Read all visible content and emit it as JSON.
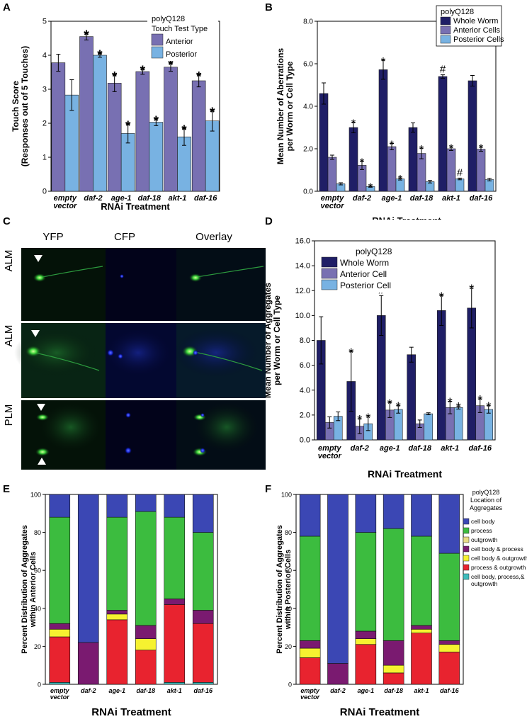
{
  "panel_labels": {
    "a": "A",
    "b": "B",
    "c": "C",
    "d": "D",
    "e": "E",
    "f": "F"
  },
  "colors": {
    "anterior": "#7870b2",
    "posterior": "#78b2e2",
    "whole": "#1f1e66",
    "cellbody": "#3b47b4",
    "process": "#3cbc3f",
    "outgrowth": "#e8db84",
    "cb_process": "#7a1a70",
    "cb_outgrowth": "#f6f230",
    "proc_outgrowth": "#e8232f",
    "all3": "#3fbcbc"
  },
  "micro": {
    "columns": [
      "YFP",
      "CFP",
      "Overlay"
    ],
    "rows": [
      "ALM",
      "ALM",
      "PLM"
    ]
  },
  "chart_data": [
    {
      "id": "A",
      "type": "bar",
      "categories": [
        "empty vector",
        "daf-2",
        "age-1",
        "daf-18",
        "akt-1",
        "daf-16"
      ],
      "cat_lines": [
        [
          "empty",
          "vector"
        ],
        [
          "daf-2"
        ],
        [
          "age-1"
        ],
        [
          "daf-18"
        ],
        [
          "akt-1"
        ],
        [
          "daf-16"
        ]
      ],
      "legend_title": [
        "polyQ128",
        "Touch Test Type"
      ],
      "series": [
        {
          "name": "Anterior",
          "color": "#7870b2",
          "values": [
            3.78,
            4.55,
            3.18,
            3.52,
            3.65,
            3.25
          ],
          "err": [
            0.25,
            0.1,
            0.25,
            0.08,
            0.12,
            0.18
          ],
          "marks": [
            "",
            "*",
            "*",
            "*",
            "*",
            "*"
          ]
        },
        {
          "name": "Posterior",
          "color": "#78b2e2",
          "values": [
            2.83,
            4.0,
            1.7,
            2.03,
            1.6,
            2.07
          ],
          "err": [
            0.45,
            0.06,
            0.28,
            0.1,
            0.25,
            0.3
          ],
          "marks": [
            "",
            "*",
            "*",
            "*",
            "*",
            "*"
          ]
        }
      ],
      "xlabel": "RNAi Treatment",
      "ylabel": [
        "Touch Score",
        "(Responses out of 5 Touches)"
      ],
      "ylim": [
        0,
        5
      ],
      "yticks": [
        "0",
        "1",
        "2",
        "3",
        "4",
        "5"
      ]
    },
    {
      "id": "B",
      "type": "bar",
      "categories": [
        "empty vector",
        "daf-2",
        "age-1",
        "daf-18",
        "akt-1",
        "daf-16"
      ],
      "cat_lines": [
        [
          "empty",
          "vector"
        ],
        [
          "daf-2"
        ],
        [
          "age-1"
        ],
        [
          "daf-18"
        ],
        [
          "akt-1"
        ],
        [
          "daf-16"
        ]
      ],
      "legend_title": [
        "polyQ128"
      ],
      "series": [
        {
          "name": "Whole Worm",
          "color": "#1f1e66",
          "values": [
            4.6,
            3.0,
            5.72,
            3.0,
            5.4,
            5.2
          ],
          "err": [
            0.5,
            0.25,
            0.45,
            0.22,
            0.08,
            0.25
          ],
          "marks": [
            "",
            "*",
            "*",
            "",
            "#",
            ""
          ]
        },
        {
          "name": "Anterior Cells",
          "color": "#7870b2",
          "values": [
            1.6,
            1.22,
            2.1,
            1.78,
            2.0,
            1.98
          ],
          "err": [
            0.1,
            0.2,
            0.15,
            0.25,
            0.08,
            0.1
          ],
          "marks": [
            "",
            "*",
            "*",
            "*",
            "*",
            "*"
          ]
        },
        {
          "name": "Posterior Cells",
          "color": "#78b2e2",
          "values": [
            0.35,
            0.22,
            0.58,
            0.45,
            0.58,
            0.55
          ],
          "err": [
            0.05,
            0.03,
            0.05,
            0.06,
            0.04,
            0.06
          ],
          "marks": [
            "",
            "*",
            "*",
            "",
            "#",
            ""
          ]
        }
      ],
      "xlabel": "RNAi Treatment",
      "ylabel": [
        "Mean Number of Aberrations",
        "per Worm or Cell Type"
      ],
      "ylim": [
        0,
        8
      ],
      "yticks": [
        "0.0",
        "2.0",
        "4.0",
        "6.0",
        "8.0"
      ]
    },
    {
      "id": "D",
      "type": "bar",
      "categories": [
        "empty vector",
        "daf-2",
        "age-1",
        "daf-18",
        "akt-1",
        "daf-16"
      ],
      "cat_lines": [
        [
          "empty",
          "vector"
        ],
        [
          "daf-2"
        ],
        [
          "age-1"
        ],
        [
          "daf-18"
        ],
        [
          "akt-1"
        ],
        [
          "daf-16"
        ]
      ],
      "legend_title": [
        "polyQ128"
      ],
      "series": [
        {
          "name": "Whole Worm",
          "color": "#1f1e66",
          "values": [
            8.0,
            4.7,
            10.0,
            6.85,
            10.4,
            10.6
          ],
          "err": [
            1.9,
            2.4,
            1.6,
            0.6,
            1.2,
            1.6
          ],
          "marks": [
            "",
            "*",
            "#",
            "",
            "*",
            "*"
          ]
        },
        {
          "name": "Anterior Cell",
          "color": "#7870b2",
          "values": [
            1.4,
            1.1,
            2.4,
            1.3,
            2.6,
            2.75
          ],
          "err": [
            0.45,
            0.6,
            0.6,
            0.3,
            0.5,
            0.55
          ],
          "marks": [
            "",
            "*",
            "*",
            "",
            "*",
            "*"
          ]
        },
        {
          "name": "Posterior Cell",
          "color": "#78b2e2",
          "values": [
            1.9,
            1.3,
            2.45,
            2.1,
            2.6,
            2.45
          ],
          "err": [
            0.35,
            0.55,
            0.3,
            0.08,
            0.12,
            0.3
          ],
          "marks": [
            "",
            "*",
            "*",
            "",
            "*",
            "*"
          ]
        }
      ],
      "xlabel": "RNAi Treatment",
      "ylabel": [
        "Mean Number of Aggregates",
        "per Worm or Cell Type"
      ],
      "ylim": [
        0,
        16
      ],
      "yticks": [
        "0.0",
        "2.0",
        "4.0",
        "6.0",
        "8.0",
        "10.0",
        "12.0",
        "14.0",
        "16.0"
      ]
    },
    {
      "id": "E",
      "type": "stacked_bar",
      "categories": [
        "empty vector",
        "daf-2",
        "age-1",
        "daf-18",
        "akt-1",
        "daf-16"
      ],
      "cat_lines": [
        [
          "empty",
          "vector"
        ],
        [
          "daf-2"
        ],
        [
          "age-1"
        ],
        [
          "daf-18"
        ],
        [
          "akt-1"
        ],
        [
          "daf-16"
        ]
      ],
      "stack_order": [
        "cell body, process,& outgrowth",
        "process & outgrowth",
        "cell body & outgrowth",
        "cell body & process",
        "outgrowth",
        "process",
        "cell body"
      ],
      "stack_colors": [
        "#3fbcbc",
        "#e8232f",
        "#f6f230",
        "#7a1a70",
        "#e8db84",
        "#3cbc3f",
        "#3b47b4"
      ],
      "values": [
        [
          1,
          24,
          4,
          3,
          0,
          56,
          12
        ],
        [
          0,
          0,
          0,
          22,
          0,
          0,
          78
        ],
        [
          0,
          34,
          3,
          2,
          0,
          49,
          12
        ],
        [
          0,
          18,
          6,
          7,
          0,
          60,
          9
        ],
        [
          1,
          41,
          0,
          3,
          0,
          43,
          12
        ],
        [
          1,
          31,
          0,
          7,
          0,
          41,
          20
        ]
      ],
      "xlabel": "RNAi Treatment",
      "ylabel": [
        "Percent Distribution of Aggregates",
        "within Anterior Cells"
      ],
      "ylim": [
        0,
        100
      ],
      "yticks": [
        "0",
        "20",
        "40",
        "60",
        "80",
        "100"
      ]
    },
    {
      "id": "F",
      "type": "stacked_bar",
      "categories": [
        "empty vector",
        "daf-2",
        "age-1",
        "daf-18",
        "akt-1",
        "daf-16"
      ],
      "cat_lines": [
        [
          "empty",
          "vector"
        ],
        [
          "daf-2"
        ],
        [
          "age-1"
        ],
        [
          "daf-18"
        ],
        [
          "akt-1"
        ],
        [
          "daf-16"
        ]
      ],
      "legend_title": [
        "polyQ128",
        "Location of",
        "Aggregates"
      ],
      "legend_items": [
        [
          "cell body"
        ],
        [
          "process"
        ],
        [
          "outgrowth"
        ],
        [
          "cell body & process"
        ],
        [
          "cell body & outgrowth"
        ],
        [
          "process & outgrowth"
        ],
        [
          "cell body, process,&",
          "outgrowth"
        ]
      ],
      "legend_colors": [
        "#3b47b4",
        "#3cbc3f",
        "#e8db84",
        "#7a1a70",
        "#f6f230",
        "#e8232f",
        "#3fbcbc"
      ],
      "stack_order": [
        "cell body, process,& outgrowth",
        "process & outgrowth",
        "cell body & outgrowth",
        "cell body & process",
        "outgrowth",
        "process",
        "cell body"
      ],
      "stack_colors": [
        "#3fbcbc",
        "#e8232f",
        "#f6f230",
        "#7a1a70",
        "#e8db84",
        "#3cbc3f",
        "#3b47b4"
      ],
      "values": [
        [
          0,
          14,
          5,
          4,
          0,
          55,
          22
        ],
        [
          0,
          0,
          0,
          11,
          0,
          0,
          89
        ],
        [
          0,
          21,
          3,
          4,
          0,
          52,
          20
        ],
        [
          0,
          6,
          4,
          13,
          0,
          59,
          18
        ],
        [
          0,
          27,
          2,
          2,
          0,
          47,
          22
        ],
        [
          0,
          17,
          4,
          2,
          0,
          46,
          31
        ]
      ],
      "xlabel": "RNAi Treatment",
      "ylabel": [
        "Percent Distribution of Aggregates",
        "within Posterior Cells"
      ],
      "ylim": [
        0,
        100
      ],
      "yticks": [
        "0",
        "20",
        "40",
        "60",
        "80",
        "100"
      ]
    }
  ]
}
